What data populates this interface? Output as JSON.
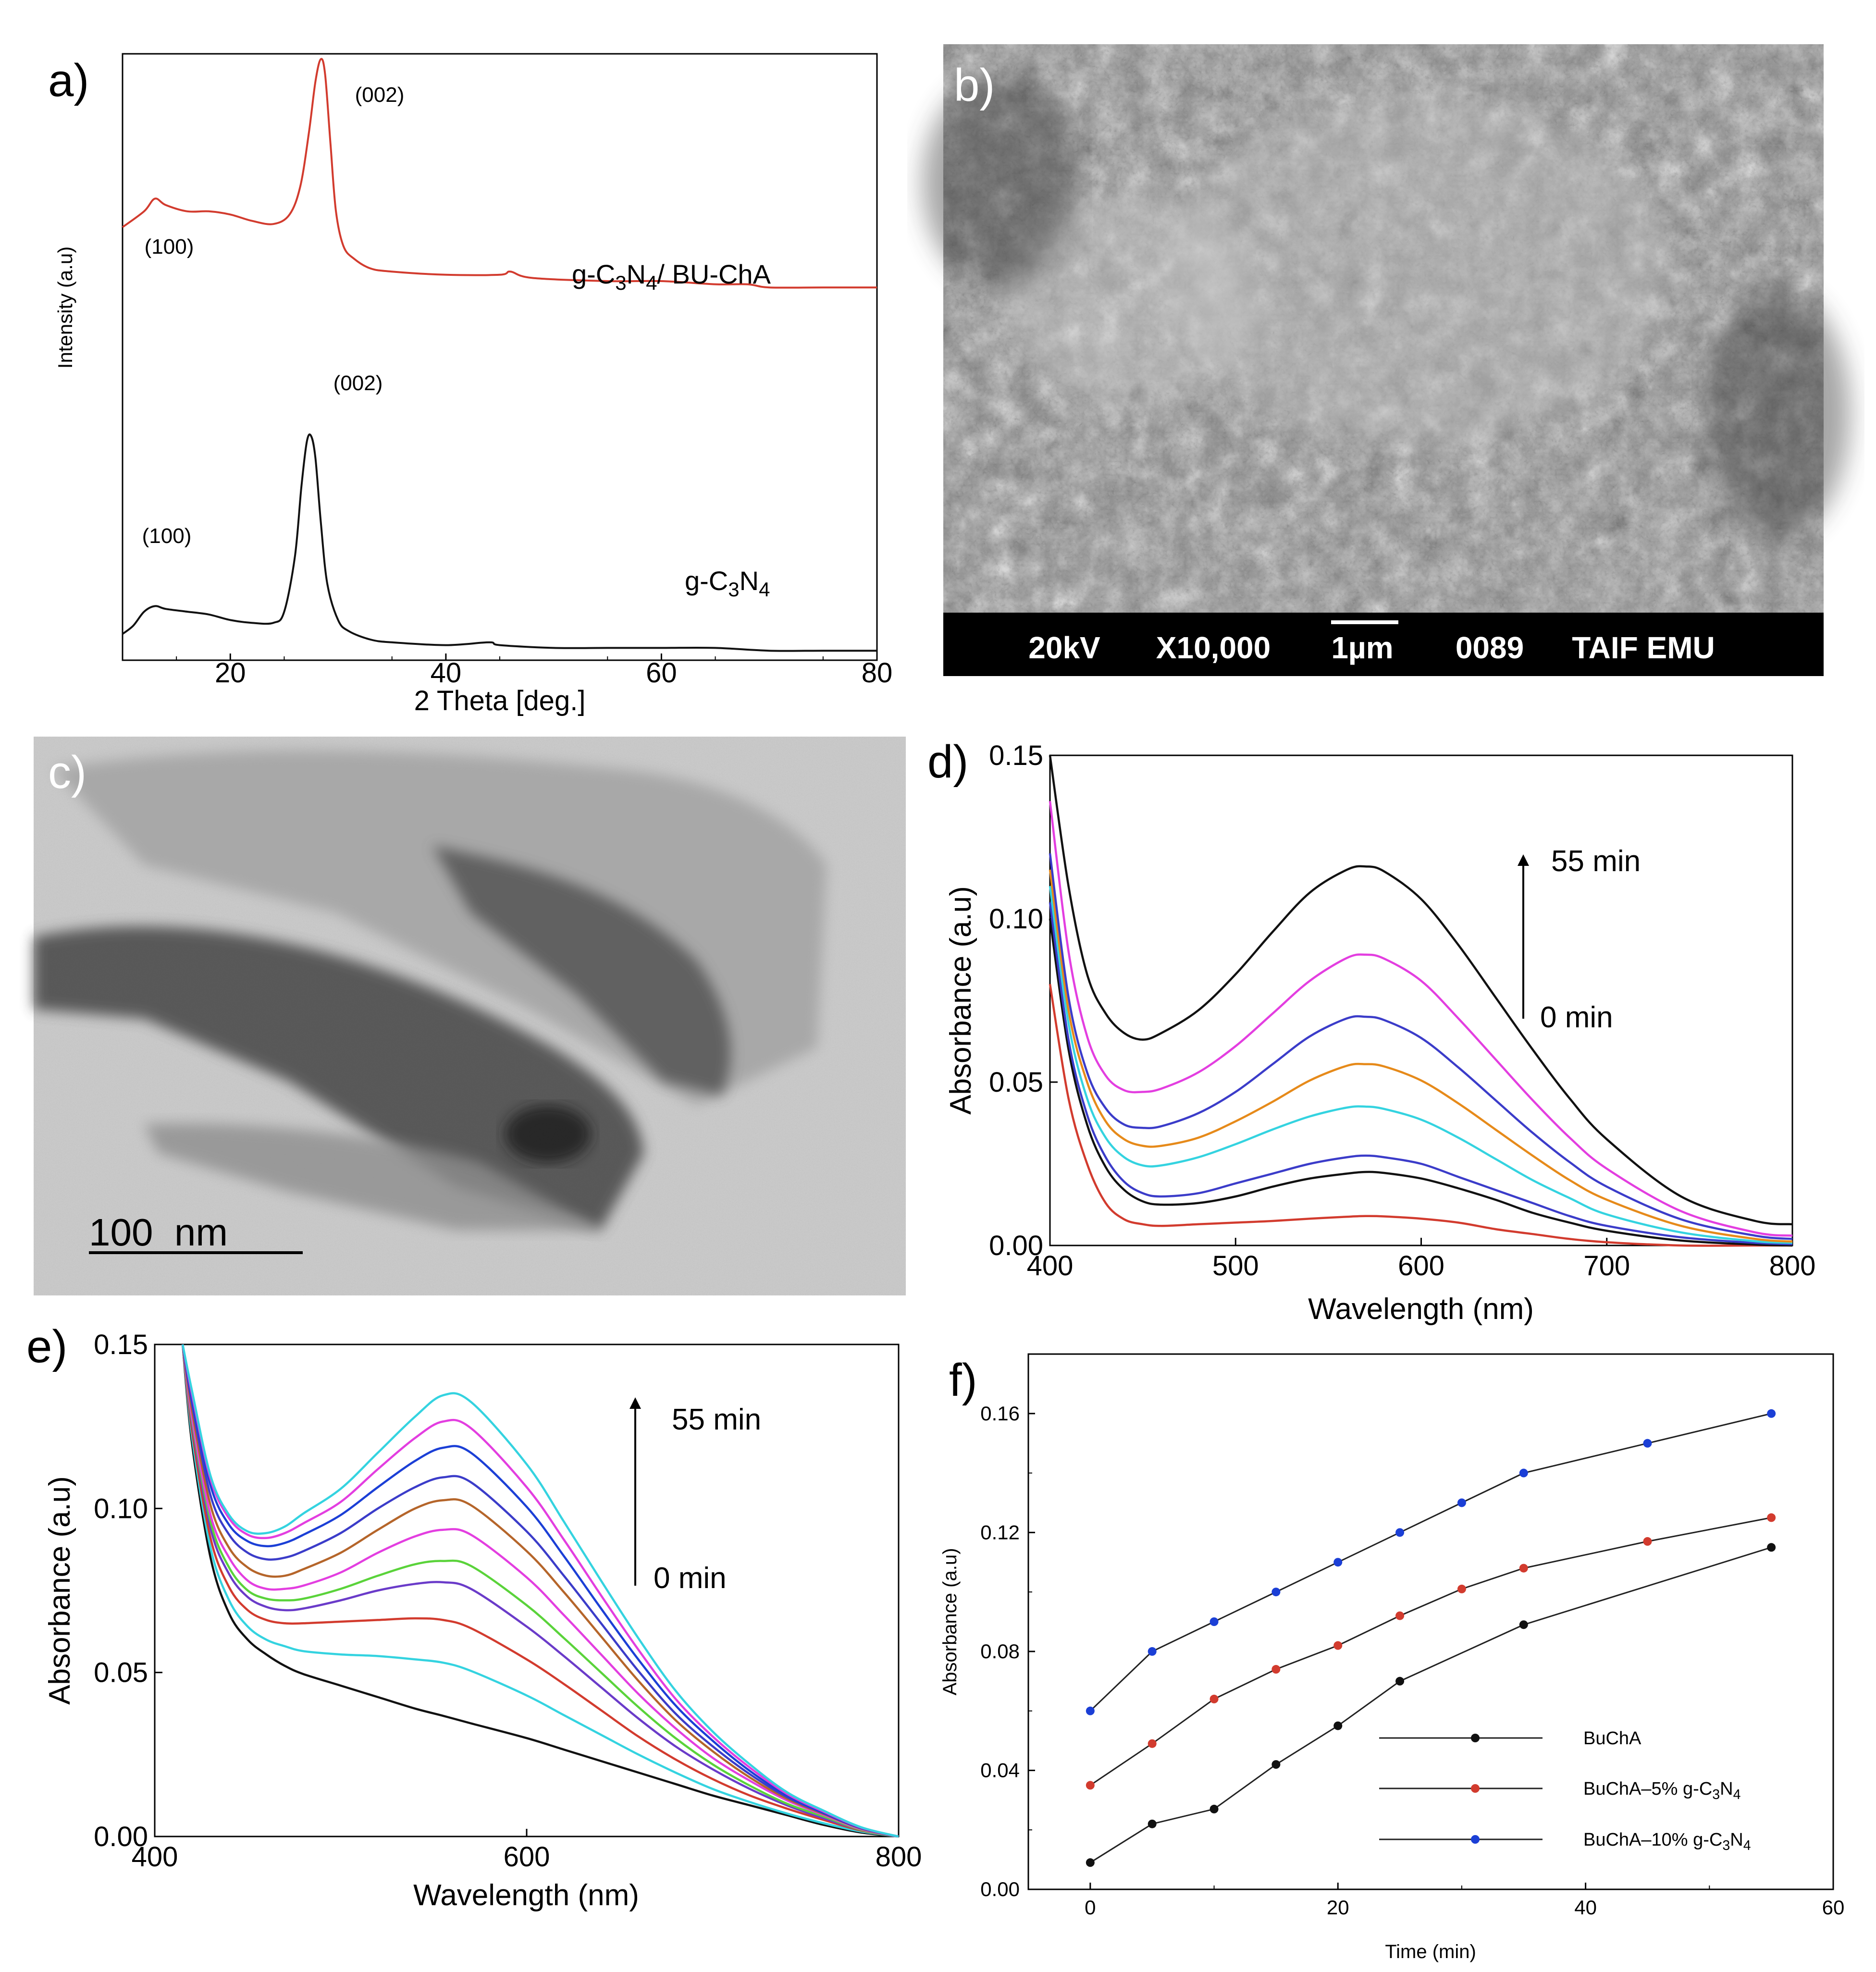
{
  "colors": {
    "red": "#d23b2e",
    "black": "#111111",
    "magenta": "#e33ee0",
    "blue": "#3b3cc9",
    "orange": "#e68a1a",
    "cyan": "#34d3e0",
    "brown": "#b5652a",
    "green": "#5ad33a",
    "violet": "#6a3bc9",
    "fblue": "#1b3fd6"
  },
  "panels": {
    "a": {
      "label": "a)",
      "ylabel": "Intensity (a.u)",
      "xlabel": "2 Theta [deg.]",
      "xticks": [
        "20",
        "40",
        "60",
        "80"
      ],
      "peak_002": "(002)",
      "peak_100": "(100)",
      "series_top": "g-C3N4/ BU-ChA",
      "series_bottom": "g-C3N4"
    },
    "b": {
      "label": "b)",
      "kv": "20kV",
      "mag": "X10,000",
      "scale": "1µm",
      "num": "0089",
      "lab": "TAIF EMU"
    },
    "c": {
      "label": "c)",
      "scale": "100  nm"
    },
    "d": {
      "label": "d)",
      "ylabel": "Absorbance (a.u)",
      "xlabel": "Wavelength (nm)",
      "yticks": [
        "0.00",
        "0.05",
        "0.10",
        "0.15"
      ],
      "xticks": [
        "400",
        "500",
        "600",
        "700",
        "800"
      ],
      "time_top": "55 min",
      "time_bottom": "0 min"
    },
    "e": {
      "label": "e)",
      "ylabel": "Absorbance (a.u)",
      "xlabel": "Wavelength (nm)",
      "yticks": [
        "0.00",
        "0.05",
        "0.10",
        "0.15"
      ],
      "xticks": [
        "400",
        "600",
        "800"
      ],
      "time_top": "55 min",
      "time_bottom": "0 min"
    },
    "f": {
      "label": "f)",
      "ylabel": "Absorbance (a.u)",
      "xlabel": "Time (min)",
      "yticks": [
        "0.00",
        "0.04",
        "0.08",
        "0.12",
        "0.16"
      ],
      "xticks": [
        "0",
        "20",
        "40",
        "60"
      ],
      "legend": [
        "BuChA",
        "BuChA–5% g-C3N4",
        "BuChA–10% g-C3N4"
      ]
    }
  },
  "chart_data": [
    {
      "panel": "a",
      "type": "line",
      "title": "",
      "xlabel": "2 Theta [deg.]",
      "ylabel": "Intensity (a.u)",
      "xlim": [
        10,
        80
      ],
      "series": [
        {
          "name": "g-C3N4/ BU-ChA",
          "x": [
            10,
            12,
            13,
            14,
            16,
            18,
            20,
            22,
            24,
            25.5,
            26.5,
            27.3,
            27.9,
            28.4,
            28.8,
            29.3,
            29.8,
            30.5,
            31.5,
            33,
            35,
            40,
            45,
            46,
            48,
            55,
            60,
            65,
            68,
            70,
            75,
            80
          ],
          "y": [
            0.42,
            0.47,
            0.51,
            0.49,
            0.47,
            0.47,
            0.46,
            0.44,
            0.43,
            0.46,
            0.55,
            0.72,
            0.88,
            0.95,
            0.9,
            0.68,
            0.47,
            0.36,
            0.32,
            0.29,
            0.28,
            0.27,
            0.27,
            0.28,
            0.26,
            0.25,
            0.25,
            0.24,
            0.24,
            0.23,
            0.23,
            0.23
          ]
        },
        {
          "name": "g-C3N4",
          "x": [
            10,
            11,
            12,
            13,
            14,
            16,
            18,
            20,
            22,
            24,
            25,
            26,
            26.6,
            27.1,
            27.5,
            27.9,
            28.4,
            29,
            30,
            31,
            33,
            35,
            40,
            44,
            45,
            50,
            55,
            60,
            65,
            70,
            75,
            80
          ],
          "y": [
            0.07,
            0.1,
            0.15,
            0.17,
            0.16,
            0.15,
            0.14,
            0.12,
            0.11,
            0.11,
            0.15,
            0.35,
            0.6,
            0.76,
            0.78,
            0.7,
            0.47,
            0.25,
            0.12,
            0.08,
            0.05,
            0.04,
            0.03,
            0.04,
            0.03,
            0.02,
            0.02,
            0.02,
            0.02,
            0.01,
            0.01,
            0.01
          ]
        }
      ],
      "annotations": [
        "(002)",
        "(100)",
        "(002)",
        "(100)"
      ]
    },
    {
      "panel": "d",
      "type": "line",
      "title": "",
      "xlabel": "Wavelength (nm)",
      "ylabel": "Absorbance (a.u)",
      "xlim": [
        400,
        800
      ],
      "ylim": [
        0,
        0.15
      ],
      "x": [
        400,
        410,
        420,
        430,
        440,
        450,
        460,
        480,
        500,
        520,
        540,
        560,
        570,
        580,
        600,
        620,
        640,
        660,
        680,
        700,
        740,
        780,
        800
      ],
      "series": [
        {
          "name": "red",
          "color": "red",
          "values": [
            0.08,
            0.045,
            0.025,
            0.013,
            0.008,
            0.0065,
            0.006,
            0.0065,
            0.007,
            0.0075,
            0.0082,
            0.0088,
            0.009,
            0.0089,
            0.0082,
            0.007,
            0.005,
            0.0035,
            0.002,
            0.001,
            0.0,
            0.0,
            0.0
          ]
        },
        {
          "name": "black-lower",
          "color": "black",
          "values": [
            0.1,
            0.06,
            0.037,
            0.024,
            0.017,
            0.0135,
            0.0125,
            0.013,
            0.015,
            0.018,
            0.0205,
            0.022,
            0.0225,
            0.0222,
            0.0205,
            0.0175,
            0.014,
            0.01,
            0.007,
            0.0045,
            0.0015,
            0.0003,
            0.0
          ]
        },
        {
          "name": "blue-lower",
          "color": "blue",
          "values": [
            0.105,
            0.063,
            0.04,
            0.027,
            0.0195,
            0.016,
            0.015,
            0.016,
            0.019,
            0.022,
            0.025,
            0.027,
            0.0275,
            0.027,
            0.025,
            0.021,
            0.017,
            0.013,
            0.009,
            0.006,
            0.0025,
            0.0008,
            0.0004
          ]
        },
        {
          "name": "cyan",
          "color": "cyan",
          "values": [
            0.11,
            0.068,
            0.045,
            0.033,
            0.027,
            0.0245,
            0.0245,
            0.027,
            0.031,
            0.0355,
            0.0395,
            0.0422,
            0.0425,
            0.0418,
            0.0385,
            0.033,
            0.0265,
            0.02,
            0.0145,
            0.0095,
            0.004,
            0.0013,
            0.0008
          ]
        },
        {
          "name": "orange",
          "color": "orange",
          "values": [
            0.115,
            0.072,
            0.05,
            0.038,
            0.0325,
            0.0305,
            0.0305,
            0.033,
            0.038,
            0.044,
            0.0505,
            0.055,
            0.0555,
            0.0548,
            0.0505,
            0.0435,
            0.0355,
            0.0275,
            0.02,
            0.014,
            0.006,
            0.002,
            0.0012
          ]
        },
        {
          "name": "blue",
          "color": "blue",
          "values": [
            0.12,
            0.076,
            0.053,
            0.042,
            0.037,
            0.036,
            0.0365,
            0.0405,
            0.047,
            0.0555,
            0.064,
            0.0695,
            0.07,
            0.069,
            0.0635,
            0.0545,
            0.0445,
            0.0345,
            0.0255,
            0.018,
            0.008,
            0.003,
            0.002
          ]
        },
        {
          "name": "magenta",
          "color": "magenta",
          "values": [
            0.136,
            0.09,
            0.064,
            0.052,
            0.0475,
            0.047,
            0.048,
            0.053,
            0.061,
            0.071,
            0.081,
            0.088,
            0.089,
            0.0878,
            0.081,
            0.0695,
            0.057,
            0.0445,
            0.033,
            0.0235,
            0.0105,
            0.004,
            0.003
          ]
        },
        {
          "name": "black",
          "color": "black",
          "values": [
            0.15,
            0.11,
            0.083,
            0.071,
            0.065,
            0.063,
            0.065,
            0.072,
            0.083,
            0.096,
            0.108,
            0.115,
            0.116,
            0.1145,
            0.106,
            0.092,
            0.076,
            0.06,
            0.045,
            0.0325,
            0.015,
            0.0075,
            0.0065
          ]
        }
      ],
      "annotations": [
        "55 min",
        "0 min"
      ]
    },
    {
      "panel": "e",
      "type": "line",
      "title": "",
      "xlabel": "Wavelength (nm)",
      "ylabel": "Absorbance (a.u)",
      "xlim": [
        400,
        800
      ],
      "ylim": [
        0,
        0.15
      ],
      "x": [
        415,
        420,
        430,
        440,
        450,
        460,
        470,
        480,
        500,
        520,
        540,
        555,
        570,
        600,
        620,
        640,
        660,
        680,
        700,
        720,
        740,
        760,
        780,
        800
      ],
      "series": [
        {
          "name": "black",
          "color": "black",
          "values": [
            0.15,
            0.12,
            0.085,
            0.068,
            0.06,
            0.0555,
            0.052,
            0.0495,
            0.046,
            0.0425,
            0.039,
            0.0368,
            0.0345,
            0.03,
            0.0265,
            0.023,
            0.0195,
            0.016,
            0.0125,
            0.0095,
            0.0065,
            0.0035,
            0.0012,
            0.0
          ]
        },
        {
          "name": "cyan-lower",
          "color": "cyan",
          "values": [
            0.15,
            0.122,
            0.088,
            0.072,
            0.064,
            0.06,
            0.058,
            0.0565,
            0.0555,
            0.055,
            0.054,
            0.053,
            0.0505,
            0.043,
            0.037,
            0.031,
            0.025,
            0.0195,
            0.0145,
            0.0105,
            0.007,
            0.004,
            0.0015,
            0.0
          ]
        },
        {
          "name": "red",
          "color": "red",
          "values": [
            0.15,
            0.124,
            0.091,
            0.076,
            0.069,
            0.066,
            0.065,
            0.065,
            0.0655,
            0.066,
            0.0665,
            0.066,
            0.0635,
            0.054,
            0.0465,
            0.0385,
            0.0305,
            0.0235,
            0.0175,
            0.0125,
            0.0085,
            0.005,
            0.0018,
            0.0
          ]
        },
        {
          "name": "violet",
          "color": "violet",
          "values": [
            0.15,
            0.126,
            0.094,
            0.08,
            0.073,
            0.07,
            0.069,
            0.0695,
            0.072,
            0.075,
            0.077,
            0.0775,
            0.0755,
            0.064,
            0.055,
            0.0455,
            0.036,
            0.0275,
            0.0205,
            0.0145,
            0.0095,
            0.0055,
            0.002,
            0.0
          ]
        },
        {
          "name": "green",
          "color": "green",
          "values": [
            0.15,
            0.127,
            0.096,
            0.082,
            0.075,
            0.0725,
            0.072,
            0.0725,
            0.0755,
            0.0795,
            0.083,
            0.084,
            0.0825,
            0.0705,
            0.0605,
            0.05,
            0.0395,
            0.03,
            0.022,
            0.0155,
            0.01,
            0.006,
            0.002,
            0.0
          ]
        },
        {
          "name": "magenta-lower",
          "color": "magenta",
          "values": [
            0.15,
            0.128,
            0.098,
            0.085,
            0.078,
            0.0755,
            0.0755,
            0.0765,
            0.0805,
            0.0865,
            0.0915,
            0.0935,
            0.092,
            0.079,
            0.0675,
            0.0555,
            0.0435,
            0.033,
            0.024,
            0.017,
            0.011,
            0.0065,
            0.0022,
            0.0
          ]
        },
        {
          "name": "brown",
          "color": "brown",
          "values": [
            0.15,
            0.13,
            0.101,
            0.088,
            0.082,
            0.0795,
            0.0795,
            0.0815,
            0.0865,
            0.0935,
            0.1,
            0.1025,
            0.101,
            0.087,
            0.0745,
            0.061,
            0.0475,
            0.0355,
            0.026,
            0.018,
            0.0115,
            0.0068,
            0.0024,
            0.0
          ]
        },
        {
          "name": "blue-mid",
          "color": "blue",
          "values": [
            0.15,
            0.132,
            0.104,
            0.092,
            0.0865,
            0.0845,
            0.085,
            0.087,
            0.0925,
            0.1,
            0.1065,
            0.1095,
            0.108,
            0.093,
            0.0795,
            0.065,
            0.0505,
            0.0375,
            0.0275,
            0.019,
            0.012,
            0.007,
            0.0025,
            0.0
          ]
        },
        {
          "name": "blue-upper",
          "color": "fblue",
          "values": [
            0.15,
            0.134,
            0.107,
            0.095,
            0.09,
            0.0885,
            0.0895,
            0.092,
            0.098,
            0.1065,
            0.1145,
            0.1185,
            0.117,
            0.1005,
            0.0855,
            0.0695,
            0.054,
            0.04,
            0.0292,
            0.02,
            0.0125,
            0.0072,
            0.0026,
            0.0
          ]
        },
        {
          "name": "magenta",
          "color": "magenta",
          "values": [
            0.15,
            0.135,
            0.109,
            0.097,
            0.092,
            0.091,
            0.0925,
            0.0955,
            0.102,
            0.112,
            0.1215,
            0.1265,
            0.1245,
            0.1065,
            0.0905,
            0.0735,
            0.057,
            0.042,
            0.0305,
            0.021,
            0.013,
            0.0075,
            0.0027,
            0.0
          ]
        },
        {
          "name": "cyan",
          "color": "cyan",
          "values": [
            0.15,
            0.136,
            0.11,
            0.098,
            0.093,
            0.0925,
            0.0945,
            0.0985,
            0.106,
            0.117,
            0.128,
            0.1345,
            0.1325,
            0.1135,
            0.096,
            0.078,
            0.0605,
            0.0445,
            0.032,
            0.022,
            0.0135,
            0.0078,
            0.0028,
            0.0
          ]
        }
      ],
      "annotations": [
        "55 min",
        "0 min"
      ]
    },
    {
      "panel": "f",
      "type": "line",
      "title": "",
      "xlabel": "Time (min)",
      "ylabel": "Absorbance (a.u)",
      "xlim": [
        -5,
        60
      ],
      "ylim": [
        0,
        0.18
      ],
      "series": [
        {
          "name": "BuChA",
          "color": "black",
          "x": [
            0,
            5,
            10,
            15,
            20,
            25,
            35,
            55
          ],
          "values": [
            0.009,
            0.022,
            0.027,
            0.042,
            0.055,
            0.07,
            0.089,
            0.115
          ]
        },
        {
          "name": "BuChA–5% g-C3N4",
          "color": "red",
          "x": [
            0,
            5,
            10,
            15,
            20,
            25,
            30,
            35,
            45,
            55
          ],
          "values": [
            0.035,
            0.049,
            0.064,
            0.074,
            0.082,
            0.092,
            0.101,
            0.108,
            0.117,
            0.125
          ]
        },
        {
          "name": "BuChA–10% g-C3N4",
          "color": "fblue",
          "x": [
            0,
            5,
            10,
            15,
            20,
            25,
            30,
            35,
            45,
            55
          ],
          "values": [
            0.06,
            0.08,
            0.09,
            0.1,
            0.11,
            0.12,
            0.13,
            0.14,
            0.15,
            0.16
          ]
        }
      ]
    }
  ]
}
